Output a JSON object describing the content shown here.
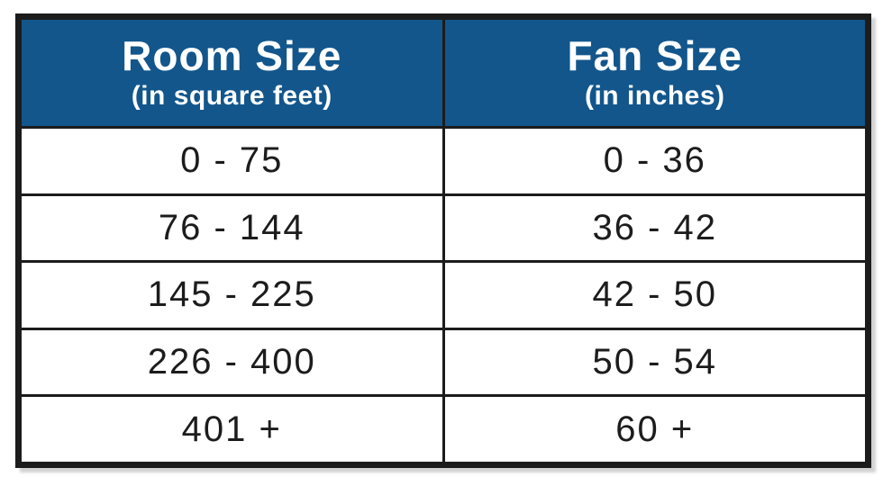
{
  "colors": {
    "header_bg": "#12568C",
    "header_text": "#FFFFFF",
    "body_text": "#1C1C1C",
    "border": "#1C1C1C",
    "background": "#FFFFFF"
  },
  "chart_data": {
    "type": "table",
    "columns": [
      {
        "title": "Room Size",
        "subtitle": "(in square feet)"
      },
      {
        "title": "Fan Size",
        "subtitle": "(in inches)"
      }
    ],
    "rows": [
      [
        "0 - 75",
        "0 - 36"
      ],
      [
        "76 - 144",
        "36 - 42"
      ],
      [
        "145 - 225",
        "42 - 50"
      ],
      [
        "226 - 400",
        "50 - 54"
      ],
      [
        "401 +",
        "60 +"
      ]
    ]
  }
}
